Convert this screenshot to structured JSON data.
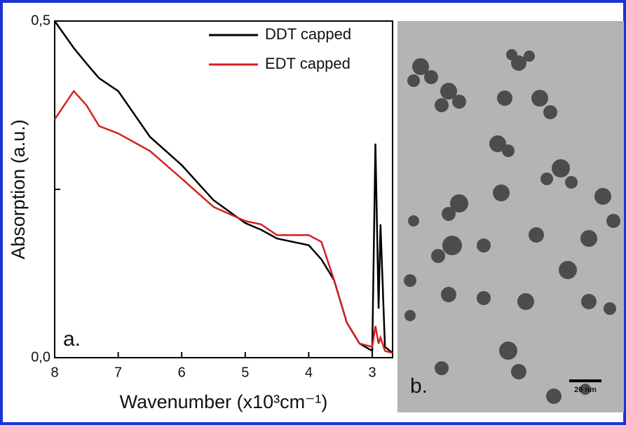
{
  "chart_data": {
    "type": "line",
    "x_label": "Wavenumber (x10³cm⁻¹)",
    "y_label": "Absorption (a.u.)",
    "panel_a_label": "a.",
    "panel_b_label": "b.",
    "scale_bar_label": "20 nm",
    "x": [
      8,
      7.7,
      7.5,
      7.3,
      7,
      6.5,
      6,
      5.5,
      5,
      4.75,
      4.5,
      4,
      3.8,
      3.6,
      3.4,
      3.2,
      3.0,
      2.95,
      2.9,
      2.87,
      2.8,
      2.68
    ],
    "series": [
      {
        "name": "DDT capped",
        "color": "#000000",
        "values": [
          0.5,
          0.46,
          0.437,
          0.415,
          0.396,
          0.328,
          0.286,
          0.234,
          0.2,
          0.19,
          0.177,
          0.167,
          0.146,
          0.115,
          0.052,
          0.021,
          0.01,
          0.318,
          0.073,
          0.198,
          0.016,
          0.007
        ]
      },
      {
        "name": "EDT capped",
        "color": "#d42020",
        "values": [
          0.354,
          0.396,
          0.375,
          0.344,
          0.333,
          0.307,
          0.266,
          0.224,
          0.203,
          0.198,
          0.182,
          0.182,
          0.172,
          0.115,
          0.052,
          0.021,
          0.016,
          0.047,
          0.021,
          0.03,
          0.01,
          0.007
        ]
      }
    ],
    "xlim": [
      8,
      2.68
    ],
    "xticks": [
      8,
      7,
      6,
      5,
      4,
      3
    ],
    "ylim": [
      0,
      0.5
    ],
    "yticks": [
      {
        "value": 0,
        "label": "0,0"
      },
      {
        "value": 0.25,
        "label": ""
      },
      {
        "value": 0.5,
        "label": "0,5"
      }
    ],
    "legend": "upper right"
  }
}
